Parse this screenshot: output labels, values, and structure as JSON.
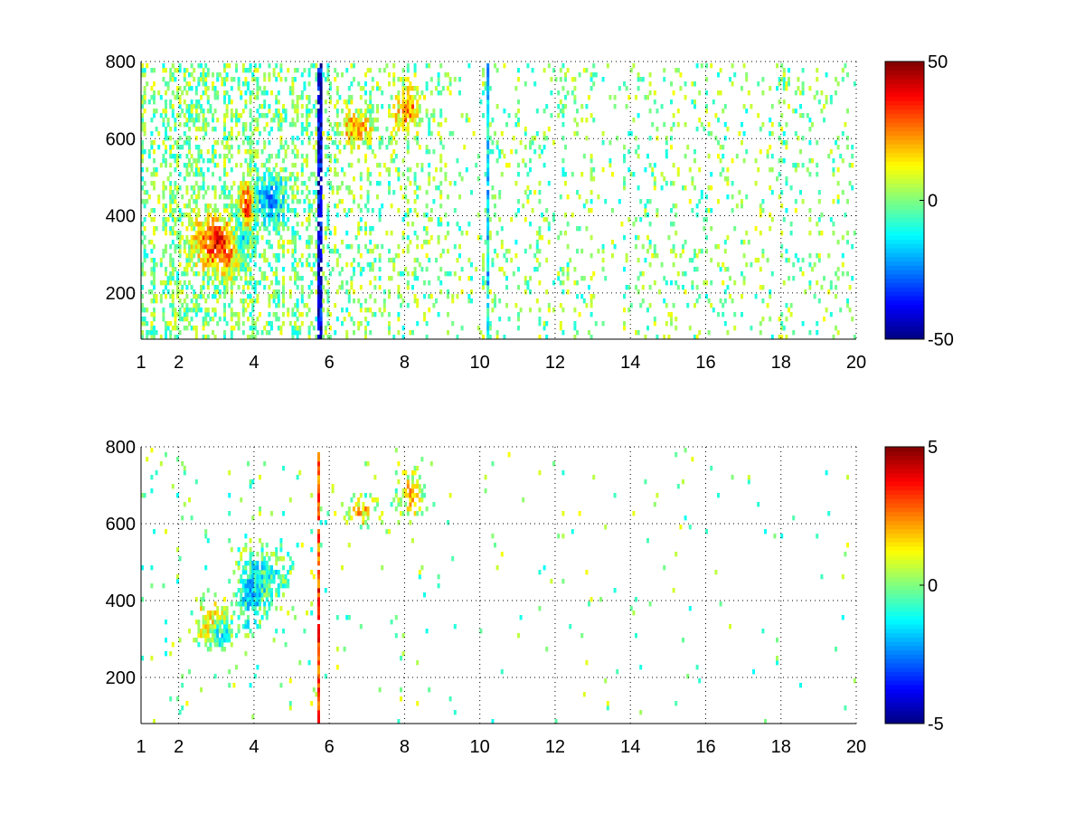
{
  "chart_data": [
    {
      "type": "heatmap",
      "title": "",
      "xlabel": "",
      "ylabel": "",
      "xlim": [
        1,
        20
      ],
      "ylim": [
        80,
        800
      ],
      "x_ticks": [
        1,
        2,
        4,
        6,
        8,
        10,
        12,
        14,
        16,
        18,
        20
      ],
      "y_ticks": [
        200,
        400,
        600,
        800
      ],
      "grid": true,
      "colormap": "jet",
      "clim": [
        -50,
        50
      ],
      "colorbar_ticks": [
        -50,
        0,
        50
      ],
      "clusters": [
        {
          "x": 2.9,
          "y": 340,
          "sx": 0.35,
          "sy": 45,
          "v": 28
        },
        {
          "x": 3.25,
          "y": 300,
          "sx": 0.3,
          "sy": 40,
          "v": 18
        },
        {
          "x": 3.8,
          "y": 415,
          "sx": 0.12,
          "sy": 50,
          "v": 38
        },
        {
          "x": 3.7,
          "y": 350,
          "sx": 0.15,
          "sy": 40,
          "v": -30
        },
        {
          "x": 4.4,
          "y": 440,
          "sx": 0.3,
          "sy": 45,
          "v": -20
        },
        {
          "x": 6.7,
          "y": 630,
          "sx": 0.3,
          "sy": 30,
          "v": 22
        },
        {
          "x": 8.1,
          "y": 670,
          "sx": 0.25,
          "sy": 40,
          "v": 24
        }
      ],
      "vertical_lines": [
        {
          "x": 5.75,
          "v": -40
        },
        {
          "x": 10.2,
          "v": -15
        }
      ]
    },
    {
      "type": "heatmap",
      "title": "",
      "xlabel": "",
      "ylabel": "",
      "xlim": [
        1,
        20
      ],
      "ylim": [
        80,
        800
      ],
      "x_ticks": [
        1,
        2,
        4,
        6,
        8,
        10,
        12,
        14,
        16,
        18,
        20
      ],
      "y_ticks": [
        200,
        400,
        600,
        800
      ],
      "grid": true,
      "colormap": "jet",
      "clim": [
        -5,
        5
      ],
      "colorbar_ticks": [
        -5,
        0,
        5
      ],
      "clusters": [
        {
          "x": 2.9,
          "y": 340,
          "sx": 0.3,
          "sy": 35,
          "v": 2
        },
        {
          "x": 3.1,
          "y": 320,
          "sx": 0.2,
          "sy": 25,
          "v": -2.5
        },
        {
          "x": 3.9,
          "y": 420,
          "sx": 0.2,
          "sy": 60,
          "v": -1.5
        },
        {
          "x": 4.4,
          "y": 460,
          "sx": 0.3,
          "sy": 50,
          "v": -0.8
        },
        {
          "x": 6.8,
          "y": 635,
          "sx": 0.3,
          "sy": 20,
          "v": 1.8
        },
        {
          "x": 8.2,
          "y": 680,
          "sx": 0.2,
          "sy": 40,
          "v": 1.8
        }
      ],
      "vertical_lines": [
        {
          "x": 5.72,
          "v": 3
        }
      ]
    }
  ]
}
